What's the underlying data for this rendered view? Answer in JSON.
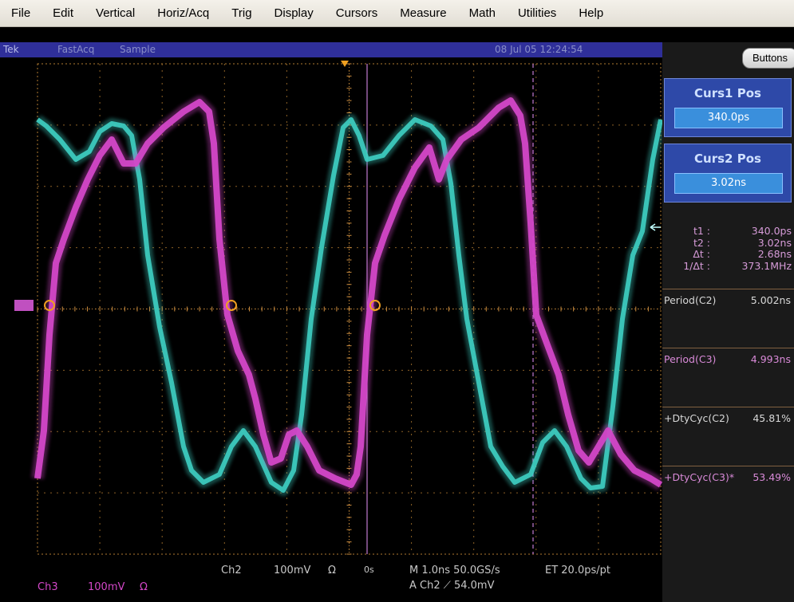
{
  "menu": [
    "File",
    "Edit",
    "Vertical",
    "Horiz/Acq",
    "Trig",
    "Display",
    "Cursors",
    "Measure",
    "Math",
    "Utilities",
    "Help"
  ],
  "status": {
    "brand": "Tek",
    "mode": "FastAcq",
    "acquisition": "Sample",
    "datetime": "08 Jul 05 12:24:54"
  },
  "panel": {
    "buttons_label": "Buttons",
    "curs1": {
      "title": "Curs1 Pos",
      "value": "340.0ps"
    },
    "curs2": {
      "title": "Curs2 Pos",
      "value": "3.02ns"
    },
    "cursor_readout": [
      {
        "label": "t1 :",
        "value": "340.0ps"
      },
      {
        "label": "t2 :",
        "value": "3.02ns"
      },
      {
        "label": "Δt :",
        "value": "2.68ns"
      },
      {
        "label": "1/Δt :",
        "value": "373.1MHz"
      }
    ],
    "measurements": [
      {
        "label": "Period(C2)",
        "value": "5.002ns",
        "color": "#d8d8d8"
      },
      {
        "label": "Period(C3)",
        "value": "4.993ns",
        "color": "#d98ad8"
      },
      {
        "label": "+DtyCyc(C2)",
        "value": "45.81%",
        "color": "#d8d8d8"
      },
      {
        "label": "+DtyCyc(C3)*",
        "value": "53.49%",
        "color": "#d98ad8"
      }
    ]
  },
  "readouts": {
    "ch2_label": "Ch2",
    "ch2_scale": "100mV",
    "ch2_coupling": "Ω",
    "ch3_label": "Ch3",
    "ch3_scale": "100mV",
    "ch3_coupling": "Ω",
    "delay": "0s",
    "horizontal": "M 1.0ns 50.0GS/s",
    "trigger": "A Ch2 ⟋ 54.0mV",
    "record": "ET 20.0ps/pt"
  },
  "colors": {
    "ch2": "#3ed0c4",
    "ch3": "#d347c8",
    "cursor": "#c07ad0",
    "graticule": "#b07a30",
    "status_bar": "#2f2f9a",
    "panel_box": "#2e49a8"
  }
}
